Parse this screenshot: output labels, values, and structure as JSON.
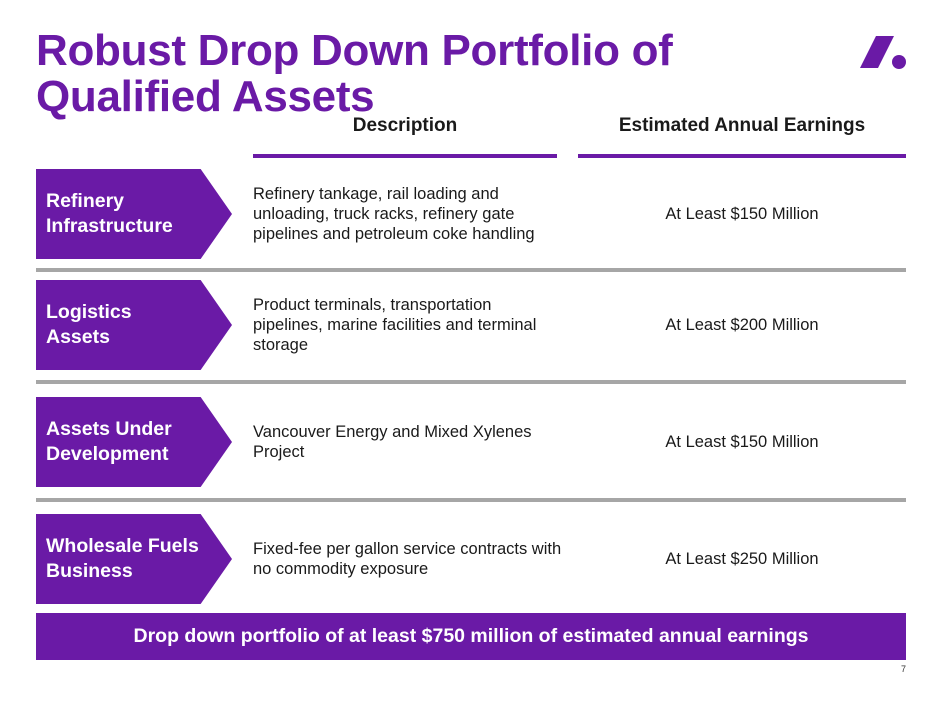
{
  "header": {
    "title": "Robust Drop Down Portfolio of Qualified Assets",
    "logo_icon": "company-logo-icon",
    "accent_color": "#6a1aa6"
  },
  "columns": {
    "description": "Description",
    "earnings": "Estimated Annual Earnings"
  },
  "rows": [
    {
      "category_line1": "Refinery",
      "category_line2": "Infrastructure",
      "description": "Refinery tankage, rail loading and unloading, truck racks, refinery gate pipelines and petroleum coke handling",
      "earnings": "At Least $150 Million"
    },
    {
      "category_line1": "Logistics",
      "category_line2": "Assets",
      "description": "Product terminals, transportation pipelines, marine facilities and terminal storage",
      "earnings": "At Least $200 Million"
    },
    {
      "category_line1": "Assets Under",
      "category_line2": "Development",
      "description": "Vancouver Energy and Mixed Xylenes Project",
      "earnings": "At Least $150 Million"
    },
    {
      "category_line1": "Wholesale Fuels",
      "category_line2": "Business",
      "description": "Fixed-fee per gallon service contracts with no commodity exposure",
      "earnings": "At Least $250 Million"
    }
  ],
  "summary": "Drop down portfolio of at least $750 million of estimated annual earnings",
  "page_number": "7"
}
